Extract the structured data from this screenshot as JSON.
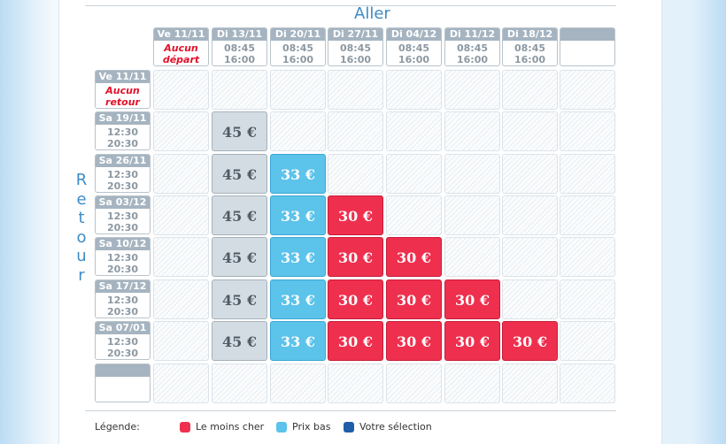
{
  "aller_title": "Aller",
  "retour_title": "Retour",
  "aller_dates": [
    {
      "date": "Ve 11/11",
      "line1": "Aucun",
      "line2": "départ",
      "none": true
    },
    {
      "date": "Di 13/11",
      "line1": "08:45",
      "line2": "16:00"
    },
    {
      "date": "Di 20/11",
      "line1": "08:45",
      "line2": "16:00"
    },
    {
      "date": "Di 27/11",
      "line1": "08:45",
      "line2": "16:00"
    },
    {
      "date": "Di 04/12",
      "line1": "08:45",
      "line2": "16:00"
    },
    {
      "date": "Di 11/12",
      "line1": "08:45",
      "line2": "16:00"
    },
    {
      "date": "Di 18/12",
      "line1": "08:45",
      "line2": "16:00"
    },
    {
      "date": "",
      "line1": "",
      "line2": "",
      "blank": true
    }
  ],
  "retour_dates": [
    {
      "date": "Ve 11/11",
      "line1": "Aucun",
      "line2": "retour",
      "none": true
    },
    {
      "date": "Sa 19/11",
      "line1": "12:30",
      "line2": "20:30"
    },
    {
      "date": "Sa 26/11",
      "line1": "12:30",
      "line2": "20:30"
    },
    {
      "date": "Sa 03/12",
      "line1": "12:30",
      "line2": "20:30"
    },
    {
      "date": "Sa 10/12",
      "line1": "12:30",
      "line2": "20:30"
    },
    {
      "date": "Sa 17/12",
      "line1": "12:30",
      "line2": "20:30"
    },
    {
      "date": "Sa 07/01",
      "line1": "12:30",
      "line2": "20:30"
    },
    {
      "date": "",
      "line1": "",
      "line2": "",
      "blank": true
    }
  ],
  "prices": [
    [
      null,
      null,
      null,
      null,
      null,
      null,
      null,
      null
    ],
    [
      null,
      "45 €",
      null,
      null,
      null,
      null,
      null,
      null
    ],
    [
      null,
      "45 €",
      "33 €",
      null,
      null,
      null,
      null,
      null
    ],
    [
      null,
      "45 €",
      "33 €",
      "30 €",
      null,
      null,
      null,
      null
    ],
    [
      null,
      "45 €",
      "33 €",
      "30 €",
      "30 €",
      null,
      null,
      null
    ],
    [
      null,
      "45 €",
      "33 €",
      "30 €",
      "30 €",
      "30 €",
      null,
      null
    ],
    [
      null,
      "45 €",
      "33 €",
      "30 €",
      "30 €",
      "30 €",
      "30 €",
      null
    ],
    [
      null,
      null,
      null,
      null,
      null,
      null,
      null,
      null
    ]
  ],
  "price_colors": {
    "45 €": "gray",
    "33 €": "blue",
    "30 €": "red"
  },
  "legend": {
    "title": "Légende:",
    "items": [
      {
        "label": "Le moins cher",
        "color": "#ef2f4e"
      },
      {
        "label": "Prix bas",
        "color": "#5cc3ea"
      },
      {
        "label": "Votre sélection",
        "color": "#1e5fa8"
      }
    ]
  }
}
